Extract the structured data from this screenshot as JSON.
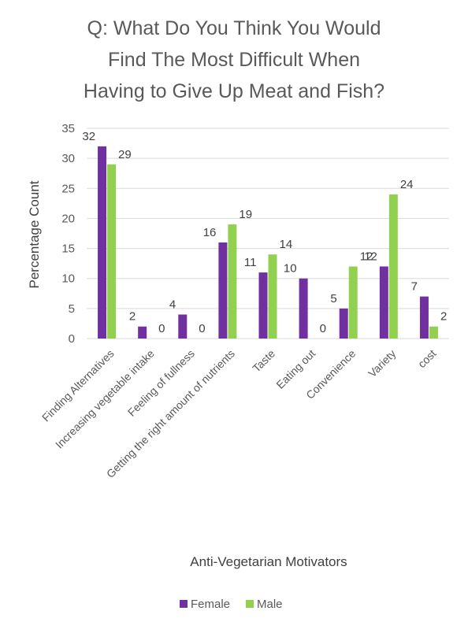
{
  "chart_data": {
    "type": "bar",
    "title_lines": [
      "Q: What Do You Think You Would",
      "Find The Most Difficult When",
      "Having to Give Up Meat and Fish?"
    ],
    "xlabel": "Anti-Vegetarian Motivators",
    "ylabel": "Percentage  Count",
    "ylim": [
      0,
      35
    ],
    "yticks": [
      0,
      5,
      10,
      15,
      20,
      25,
      30,
      35
    ],
    "grid": true,
    "legend_position": "bottom",
    "categories": [
      "Finding Alternatives",
      "Increasing vegetable intake",
      "Feeling of fullness",
      "Getting the right amount of nutrients",
      "Taste",
      "Eating out",
      "Convenience",
      "Variety",
      "cost"
    ],
    "series": [
      {
        "name": "Female",
        "color": "#7030a0",
        "values": [
          32,
          2,
          4,
          16,
          11,
          10,
          5,
          12,
          7
        ]
      },
      {
        "name": "Male",
        "color": "#92d050",
        "values": [
          29,
          0,
          0,
          19,
          14,
          0,
          12,
          24,
          2
        ]
      }
    ]
  }
}
